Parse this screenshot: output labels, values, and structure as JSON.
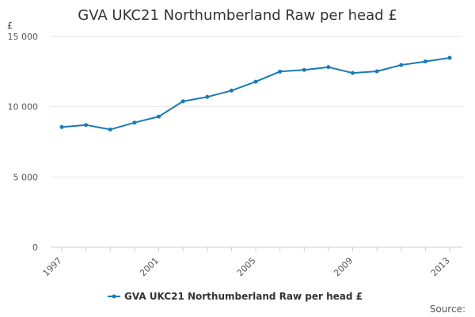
{
  "chart_data": {
    "type": "line",
    "title": "GVA UKC21 Northumberland Raw per head £",
    "ylabel": "£",
    "xlabel": "",
    "x": [
      1997,
      1998,
      1999,
      2000,
      2001,
      2002,
      2003,
      2004,
      2005,
      2006,
      2007,
      2008,
      2009,
      2010,
      2011,
      2012,
      2013
    ],
    "x_tick_labels": [
      "1997",
      "2001",
      "2005",
      "2009",
      "2013"
    ],
    "y_tick_labels": [
      "0",
      "5 000",
      "10 000",
      "15 000"
    ],
    "y_ticks": [
      0,
      5000,
      10000,
      15000
    ],
    "ylim": [
      0,
      15000
    ],
    "series": [
      {
        "name": "GVA UKC21 Northumberland Raw per head £",
        "values": [
          8550,
          8700,
          8380,
          8870,
          9300,
          10380,
          10700,
          11150,
          11780,
          12500,
          12620,
          12820,
          12400,
          12520,
          12970,
          13220,
          13480
        ],
        "color": "#1a7ab6"
      }
    ],
    "grid": true,
    "legend": "bottom",
    "source_label": "Source:"
  }
}
